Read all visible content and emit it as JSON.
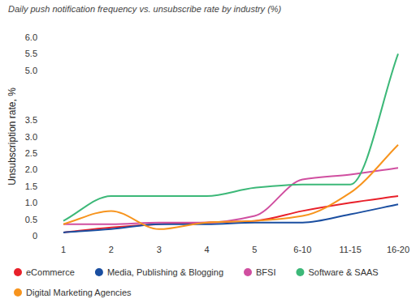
{
  "chart_data": {
    "type": "line",
    "title": "Daily push notification frequency vs. unsubscribe rate by industry (%)",
    "y_label": "Unsubscription rate, %",
    "categories": [
      "1",
      "2",
      "3",
      "4",
      "5",
      "6-10",
      "11-15",
      "16-20"
    ],
    "ylim": [
      0,
      6
    ],
    "yticks": [
      0,
      0.5,
      {
        "value": 1,
        "label": "1.0"
      },
      1.5,
      {
        "value": 2,
        "label": "2.0"
      },
      2.5,
      {
        "value": 3,
        "label": "3.0"
      },
      3.5,
      {
        "value": 5,
        "label": "5.0"
      },
      5.5,
      {
        "value": 6,
        "label": "6.0"
      }
    ],
    "grid": false,
    "legend": "bottom",
    "series": [
      {
        "name": "eCommerce",
        "color": "#e8202a",
        "values": [
          0.1,
          0.25,
          0.35,
          0.4,
          0.45,
          0.75,
          1.0,
          1.2
        ]
      },
      {
        "name": "Media, Publishing & Blogging",
        "color": "#1a4ea0",
        "values": [
          0.1,
          0.2,
          0.35,
          0.35,
          0.4,
          0.4,
          0.65,
          0.95
        ]
      },
      {
        "name": "BFSI",
        "color": "#d04fa0",
        "values": [
          0.35,
          0.35,
          0.4,
          0.4,
          0.6,
          1.7,
          1.85,
          2.05
        ]
      },
      {
        "name": "Software & SAAS",
        "color": "#3cb878",
        "values": [
          0.45,
          1.2,
          1.2,
          1.2,
          1.45,
          1.55,
          1.55,
          5.5
        ]
      },
      {
        "name": "Digital Marketing Agencies",
        "color": "#f7941d",
        "values": [
          0.35,
          0.75,
          0.2,
          0.4,
          0.45,
          0.6,
          1.3,
          2.75
        ]
      }
    ]
  }
}
